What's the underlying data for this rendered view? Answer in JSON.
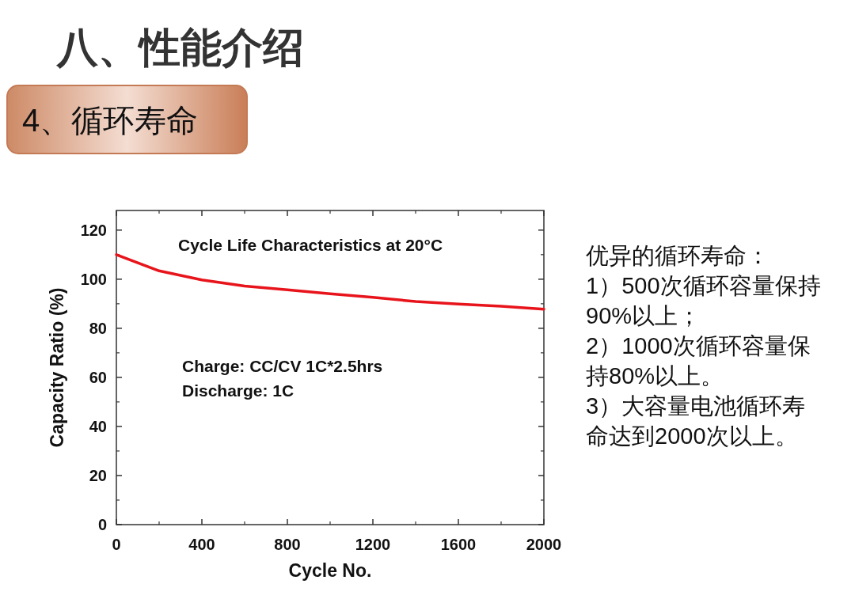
{
  "chart_data": {
    "type": "line",
    "title": "八、性能介绍",
    "subtitle": "4、循环寿命",
    "xlabel": "Cycle No.",
    "ylabel": "Capacity Ratio (%)",
    "x": [
      0,
      200,
      400,
      600,
      800,
      1000,
      1200,
      1400,
      1600,
      1800,
      2000
    ],
    "series": [
      {
        "color": "#e8141b",
        "values": [
          110,
          103.4,
          99.7,
          97.2,
          95.7,
          94.1,
          92.6,
          90.9,
          89.9,
          89,
          87.8
        ]
      }
    ],
    "xlim": [
      0,
      2000
    ],
    "ylim": [
      0,
      128
    ],
    "xticks": [
      0,
      400,
      800,
      1200,
      1600,
      2000
    ],
    "yticks": [
      0,
      20,
      40,
      60,
      80,
      100,
      120
    ],
    "grid": false,
    "marker": "none",
    "line_style": "solid",
    "annotations": [
      "Cycle Life Characteristics at 20°C",
      "Charge: CC/CV 1C*2.5hrs",
      "Discharge: 1C",
      "优异的循环寿命：",
      "1）500次循环容量保持90%以上；",
      "2）1000次循环容量保持80%以上。",
      "3）大容量电池循环寿命达到2000次以上。"
    ]
  }
}
